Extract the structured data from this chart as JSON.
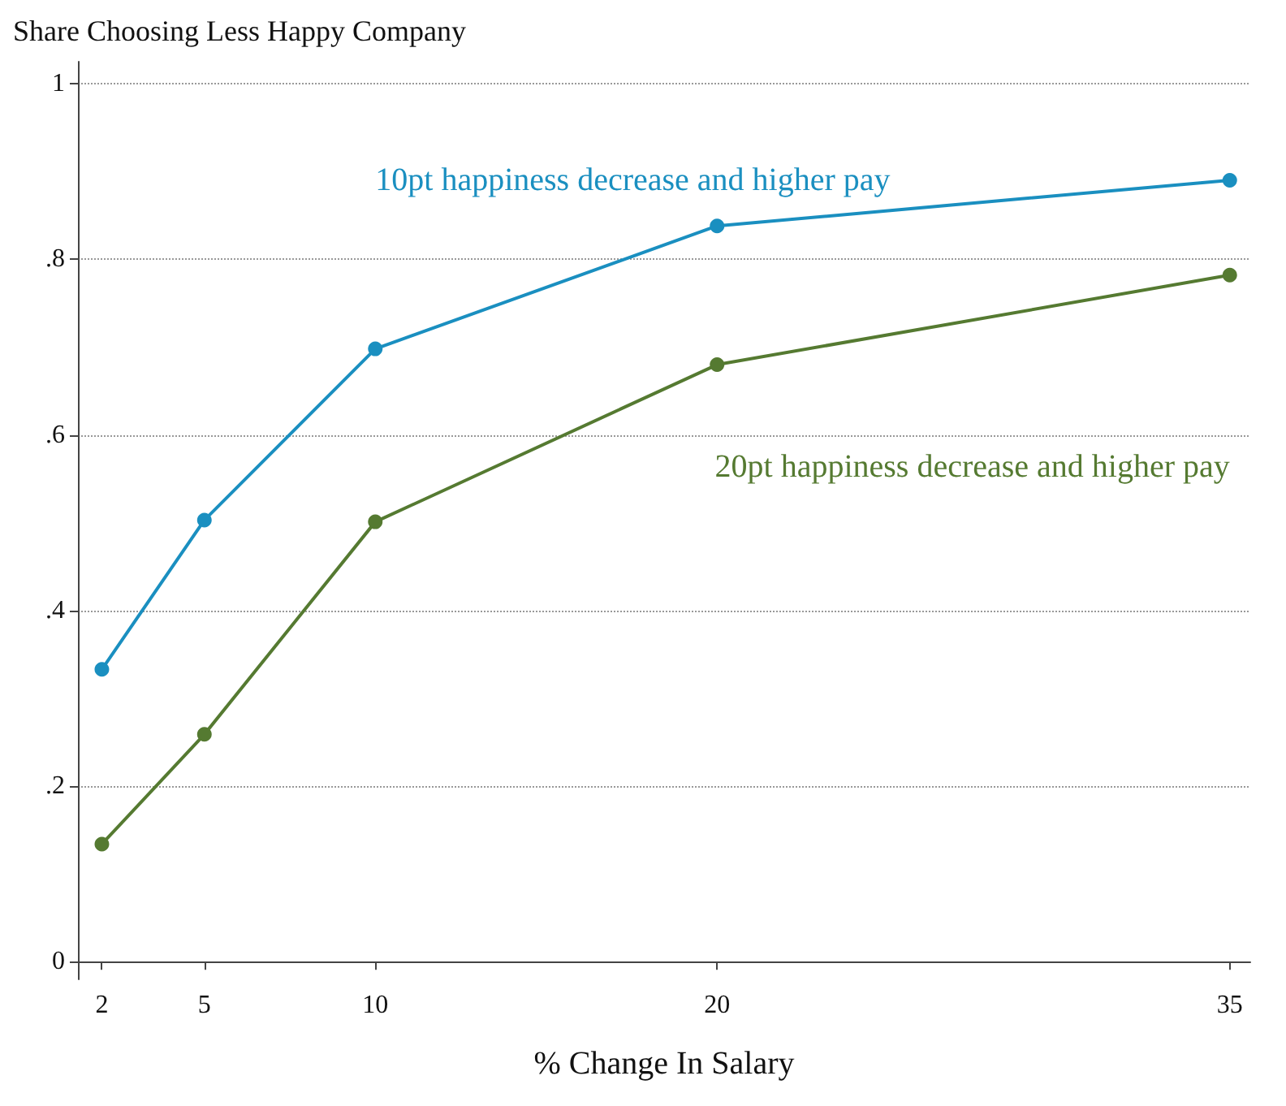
{
  "chart_data": {
    "type": "line",
    "ylabel": "Share Choosing Less Happy Company",
    "xlabel": "% Change In Salary",
    "x": [
      2,
      5,
      10,
      20,
      35
    ],
    "series": [
      {
        "name": "10pt happiness decrease and higher pay",
        "color": "#1a8fc0",
        "values": [
          0.333,
          0.503,
          0.698,
          0.838,
          0.89
        ]
      },
      {
        "name": "20pt happiness decrease and higher pay",
        "color": "#557a31",
        "values": [
          0.134,
          0.259,
          0.501,
          0.68,
          0.782
        ]
      }
    ],
    "xlim": [
      1.3,
      35.6
    ],
    "xticks": [
      2,
      5,
      10,
      20,
      35
    ],
    "ylim": [
      -0.02,
      1.025
    ],
    "yticks": [
      0,
      {
        "value": 0.2,
        "label": ".2"
      },
      {
        "value": 0.4,
        "label": ".4"
      },
      {
        "value": 0.6,
        "label": ".6"
      },
      {
        "value": 0.8,
        "label": ".8"
      },
      1
    ],
    "grid": "y",
    "marker": "circle",
    "line_style": "solid",
    "legend": false
  }
}
